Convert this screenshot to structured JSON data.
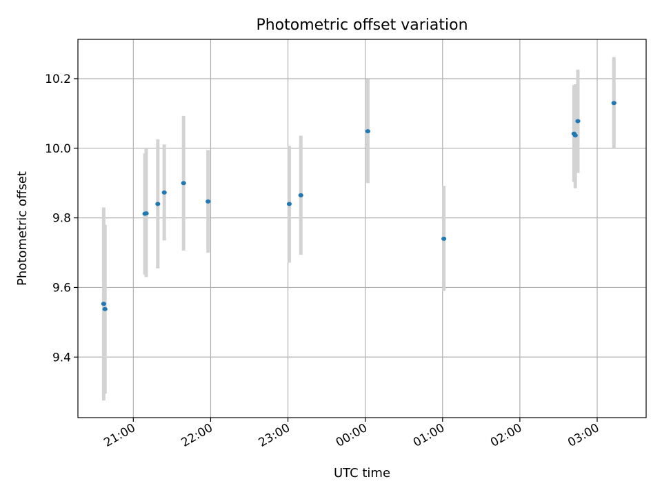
{
  "chart_data": {
    "type": "scatter",
    "title": "Photometric offset variation",
    "xlabel": "UTC time",
    "ylabel": "Photometric offset",
    "xlim": [
      "20:17",
      "03:38"
    ],
    "ylim": [
      9.226,
      10.313
    ],
    "grid": true,
    "x_ticks": [
      "21:00",
      "22:00",
      "23:00",
      "00:00",
      "01:00",
      "02:00",
      "03:00"
    ],
    "y_ticks": [
      9.4,
      9.6,
      9.8,
      10.0,
      10.2
    ],
    "y_tick_labels": [
      "9.4",
      "9.6",
      "9.8",
      "10.0",
      "10.2"
    ],
    "colors": {
      "point": "#1f77b4",
      "errorbar": "#d3d3d3",
      "grid": "#b0b0b0"
    },
    "series": [
      {
        "points": [
          {
            "x": "20:37",
            "y": 9.553,
            "ylow": 9.275,
            "yhigh": 9.83
          },
          {
            "x": "20:38",
            "y": 9.538,
            "ylow": 9.295,
            "yhigh": 9.78
          },
          {
            "x": "21:09",
            "y": 9.812,
            "ylow": 9.637,
            "yhigh": 9.985
          },
          {
            "x": "21:10",
            "y": 9.813,
            "ylow": 9.63,
            "yhigh": 9.998
          },
          {
            "x": "21:19",
            "y": 9.84,
            "ylow": 9.655,
            "yhigh": 10.026
          },
          {
            "x": "21:24",
            "y": 9.873,
            "ylow": 9.735,
            "yhigh": 10.011
          },
          {
            "x": "21:39",
            "y": 9.9,
            "ylow": 9.706,
            "yhigh": 10.093
          },
          {
            "x": "21:58",
            "y": 9.847,
            "ylow": 9.7,
            "yhigh": 9.995
          },
          {
            "x": "23:01",
            "y": 9.84,
            "ylow": 9.671,
            "yhigh": 10.007
          },
          {
            "x": "23:10",
            "y": 9.865,
            "ylow": 9.694,
            "yhigh": 10.036
          },
          {
            "x": "00:02",
            "y": 10.049,
            "ylow": 9.9,
            "yhigh": 10.199
          },
          {
            "x": "01:01",
            "y": 9.74,
            "ylow": 9.59,
            "yhigh": 9.892
          },
          {
            "x": "02:42",
            "y": 10.042,
            "ylow": 9.903,
            "yhigh": 10.181
          },
          {
            "x": "02:43",
            "y": 10.037,
            "ylow": 9.885,
            "yhigh": 10.184
          },
          {
            "x": "02:45",
            "y": 10.078,
            "ylow": 9.929,
            "yhigh": 10.226
          },
          {
            "x": "03:13",
            "y": 10.13,
            "ylow": 10.0,
            "yhigh": 10.262
          }
        ]
      }
    ]
  }
}
